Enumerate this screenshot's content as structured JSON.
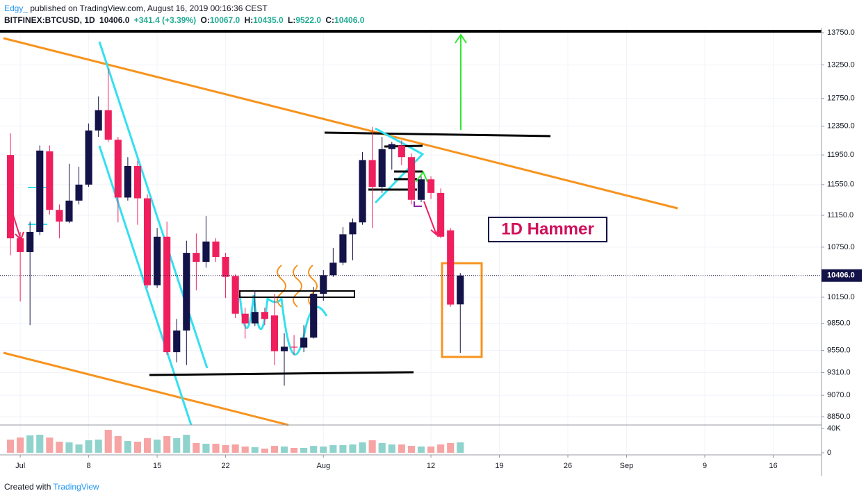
{
  "header": {
    "author": "Edgy_",
    "published": "published on TradingView.com, August 16, 2019 00:16:36 CEST",
    "symbol": "BITFINEX:BTCUSD, 1D",
    "last": "10406.0",
    "change": "+341.4 (+3.39%)",
    "o_label": "O:",
    "o": "10067.0",
    "h_label": "H:",
    "h": "10435.0",
    "l_label": "L:",
    "l": "9522.0",
    "c_label": "C:",
    "c": "10406.0"
  },
  "chart_data": {
    "type": "candlestick",
    "open": [
      11950,
      10860,
      10690,
      10940,
      12000,
      11220,
      11070,
      11340,
      11550,
      12290,
      12580,
      12160,
      11380,
      11800,
      11370,
      10290,
      10880,
      9530,
      9770,
      10680,
      10570,
      10820,
      10630,
      10400,
      9960,
      9850,
      9980,
      9940,
      9540,
      9590,
      9580,
      9690,
      10190,
      10410,
      10560,
      10910,
      11060,
      11880,
      11520,
      12030,
      12080,
      11920,
      11350,
      11620,
      11440,
      10960,
      10067
    ],
    "high": [
      12250,
      10940,
      11070,
      12080,
      12080,
      11290,
      11830,
      11790,
      12390,
      12780,
      13190,
      12200,
      11920,
      11870,
      11420,
      10990,
      11070,
      9900,
      10830,
      10920,
      11140,
      10860,
      10680,
      10420,
      10030,
      10230,
      10030,
      10190,
      9740,
      9720,
      9830,
      10270,
      10470,
      10740,
      11000,
      11110,
      11990,
      12340,
      12200,
      12130,
      12150,
      11970,
      11660,
      11660,
      11500,
      10990,
      10435
    ],
    "low": [
      10650,
      10100,
      9830,
      10900,
      11160,
      10860,
      11050,
      11290,
      11520,
      12200,
      12130,
      11060,
      11340,
      11030,
      10260,
      10260,
      9500,
      9420,
      9390,
      10230,
      10500,
      10570,
      10140,
      9910,
      9680,
      9820,
      9830,
      9390,
      9170,
      9500,
      9530,
      9680,
      10110,
      10390,
      10530,
      10590,
      11030,
      10990,
      11440,
      11750,
      11810,
      11290,
      11320,
      11360,
      10860,
      10040,
      9522
    ],
    "close": [
      10860,
      10690,
      10940,
      12010,
      11220,
      11070,
      11340,
      11550,
      12290,
      12580,
      12160,
      11380,
      11800,
      11370,
      10290,
      10880,
      9530,
      9770,
      10680,
      10570,
      10820,
      10630,
      10390,
      9960,
      9850,
      9980,
      9900,
      9540,
      9590,
      9580,
      9690,
      10190,
      10410,
      10560,
      10910,
      11060,
      11880,
      11520,
      12030,
      12100,
      11920,
      11350,
      11620,
      11440,
      10880,
      10065,
      10406
    ],
    "volume": [
      21700,
      25100,
      28600,
      29700,
      25100,
      18300,
      17100,
      13700,
      20600,
      21700,
      37700,
      27400,
      19400,
      18300,
      24000,
      21700,
      27400,
      24000,
      29700,
      16000,
      14900,
      14900,
      12600,
      13700,
      10300,
      9100,
      6900,
      11400,
      10300,
      8000,
      8000,
      11400,
      10300,
      12600,
      12600,
      13700,
      17100,
      20600,
      16000,
      13700,
      13700,
      11400,
      10300,
      10300,
      13700,
      16000,
      17100
    ],
    "up_color": "#131249",
    "down_color": "#ef1f5e",
    "vol_up_color": "#8fd3cc",
    "vol_down_color": "#f7a4a4",
    "log_scale": true,
    "ylim": [
      8766,
      13827
    ],
    "yticks": [
      {
        "value": 13750,
        "label": "13750.0"
      },
      {
        "value": 13250,
        "label": "13250.0"
      },
      {
        "value": 12750,
        "label": "12750.0"
      },
      {
        "value": 12350,
        "label": "12350.0"
      },
      {
        "value": 11950,
        "label": "11950.0"
      },
      {
        "value": 11550,
        "label": "11550.0"
      },
      {
        "value": 11150,
        "label": "11150.0"
      },
      {
        "value": 10750,
        "label": "10750.0"
      },
      {
        "value": 10150,
        "label": "10150.0"
      },
      {
        "value": 9850,
        "label": "9850.0"
      },
      {
        "value": 9550,
        "label": "9550.0"
      },
      {
        "value": 9310,
        "label": "9310.0"
      },
      {
        "value": 9070,
        "label": "9070.0"
      },
      {
        "value": 8850,
        "label": "8850.0"
      }
    ],
    "volume_ylim": [
      0,
      45700
    ],
    "volume_yticks": [
      {
        "value": 40000,
        "label": "40K"
      },
      0
    ],
    "xlim": [
      -1.07,
      82.94
    ],
    "xticks": [
      {
        "value": 1,
        "label": "Jul"
      },
      8,
      15,
      22,
      {
        "value": 32,
        "label": "Aug"
      },
      {
        "value": 43,
        "label": "12"
      },
      {
        "value": 50,
        "label": "19"
      },
      {
        "value": 57,
        "label": "26"
      },
      {
        "value": 63,
        "label": "Sep"
      },
      {
        "value": 71,
        "label": "9"
      },
      {
        "value": 78,
        "label": "16"
      }
    ],
    "last_price": {
      "value": 10406,
      "label": "10406.0"
    },
    "annotation": "1D Hammer"
  },
  "footer": {
    "created": "Created with",
    "brand": "TradingView"
  }
}
